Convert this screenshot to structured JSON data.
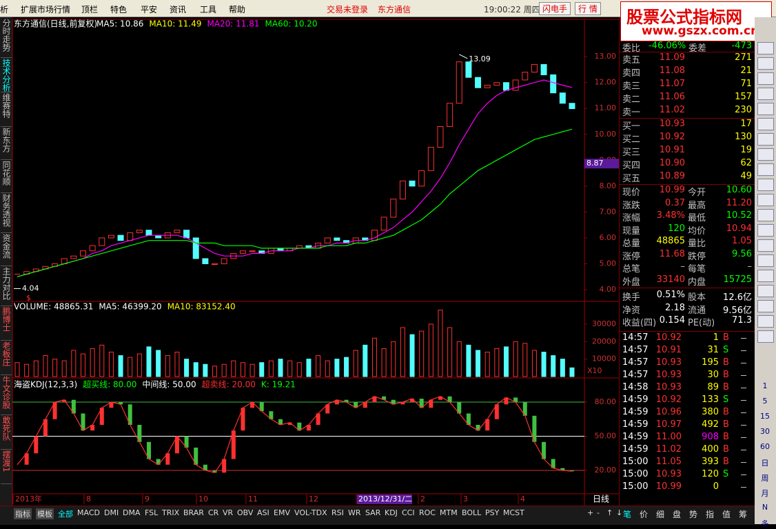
{
  "menu": {
    "items": [
      "析",
      "扩展市场行情",
      "顶栏",
      "特色",
      "平安",
      "资讯",
      "工具",
      "帮助"
    ],
    "status": [
      "交易未登录",
      "东方通信"
    ],
    "clock": "19:00:22 周四",
    "buttons": [
      "闪电手",
      "行 情"
    ]
  },
  "logo": {
    "title": "股票公式指标网",
    "url": "www.gszx.com.cn"
  },
  "left_tabs": [
    "分时走势",
    "技术分析",
    "维赛特",
    "新东方",
    "同花顺",
    "财务透视",
    "资金流",
    "主力对比",
    "鹏博士",
    "老板庄",
    "牛文诊股",
    "敢死队",
    "摆渡1"
  ],
  "price_chart": {
    "title": "东方通信(日线,前复权)",
    "ma_labels": [
      {
        "text": "MA5: 10.86",
        "color": "#ffffff"
      },
      {
        "text": "MA10: 11.49",
        "color": "#ffff00"
      },
      {
        "text": "MA20: 11.81",
        "color": "#ff00ff"
      },
      {
        "text": "MA60: 10.20",
        "color": "#00ff00"
      }
    ],
    "ylim": [
      3.6,
      14.39
    ],
    "yticks": [
      {
        "value": 4,
        "label": "4.00"
      },
      {
        "value": 5,
        "label": "5.00"
      },
      {
        "value": 6,
        "label": "6.00"
      },
      {
        "value": 7,
        "label": "7.00"
      },
      {
        "value": 8,
        "label": "8.00"
      },
      {
        "value": 9,
        "label": "9.00"
      },
      {
        "value": 10,
        "label": "10.00"
      },
      {
        "value": 11,
        "label": "11.00"
      },
      {
        "value": 12,
        "label": "12.00"
      },
      {
        "value": 13,
        "label": "13.00"
      }
    ],
    "close": [
      4.6,
      4.7,
      4.8,
      4.9,
      5.0,
      5.2,
      5.3,
      5.5,
      5.7,
      6.0,
      6.1,
      5.9,
      6.2,
      6.3,
      6.1,
      6.0,
      6.2,
      6.3,
      6.0,
      5.2,
      5.0,
      5.0,
      5.2,
      5.4,
      5.5,
      5.5,
      5.4,
      5.6,
      5.5,
      5.6,
      5.7,
      5.6,
      5.8,
      6.0,
      5.9,
      5.8,
      6.0,
      5.9,
      6.3,
      6.8,
      7.5,
      8.2,
      8.0,
      8.6,
      9.5,
      10.3,
      11.2,
      12.8,
      12.2,
      11.8,
      11.9,
      12.0,
      11.7,
      12.1,
      12.4,
      12.7,
      12.3,
      11.6,
      11.2,
      10.99
    ],
    "ma20": [
      4.5,
      4.6,
      4.7,
      4.8,
      4.9,
      5.0,
      5.1,
      5.2,
      5.4,
      5.5,
      5.7,
      5.8,
      5.9,
      6.0,
      6.1,
      6.1,
      6.1,
      6.1,
      6.0,
      5.8,
      5.6,
      5.4,
      5.3,
      5.3,
      5.3,
      5.4,
      5.4,
      5.5,
      5.5,
      5.5,
      5.6,
      5.6,
      5.7,
      5.7,
      5.8,
      5.8,
      5.9,
      5.9,
      6.0,
      6.2,
      6.4,
      6.7,
      7.0,
      7.4,
      7.8,
      8.3,
      8.9,
      9.6,
      10.2,
      10.8,
      11.2,
      11.5,
      11.7,
      11.8,
      11.9,
      12.0,
      12.1,
      12.0,
      11.9,
      11.81
    ],
    "ma60": [
      4.5,
      4.6,
      4.7,
      4.8,
      4.9,
      5.0,
      5.1,
      5.2,
      5.3,
      5.4,
      5.5,
      5.6,
      5.7,
      5.8,
      5.9,
      5.9,
      5.9,
      5.9,
      5.9,
      5.8,
      5.8,
      5.8,
      5.7,
      5.7,
      5.7,
      5.7,
      5.6,
      5.6,
      5.6,
      5.6,
      5.6,
      5.6,
      5.6,
      5.7,
      5.7,
      5.7,
      5.8,
      5.8,
      5.9,
      6.0,
      6.1,
      6.3,
      6.5,
      6.7,
      7.0,
      7.3,
      7.7,
      8.0,
      8.3,
      8.6,
      8.8,
      9.0,
      9.2,
      9.4,
      9.6,
      9.8,
      9.9,
      10.0,
      10.1,
      10.2
    ],
    "high": {
      "value": 13.09,
      "label": "13.09"
    },
    "low": {
      "value": 4.04,
      "label": "4.04"
    },
    "cursor": {
      "value": 8.87,
      "label": "8.87"
    },
    "marker": "$"
  },
  "volume_chart": {
    "labels": [
      {
        "text": "VOLUME: 48865.31",
        "color": "#ffffff"
      },
      {
        "text": "MA5: 46399.20",
        "color": "#ffffff"
      },
      {
        "text": "MA10: 83152.40",
        "color": "#ffff00"
      }
    ],
    "ylim": [
      0,
      41800
    ],
    "yticks": [
      10000,
      20000,
      30000
    ],
    "unit": "X10",
    "values": [
      8000,
      7000,
      9000,
      12000,
      10000,
      9000,
      15000,
      13000,
      16000,
      18000,
      14000,
      12000,
      11000,
      13000,
      17000,
      15000,
      12000,
      14000,
      10000,
      8000,
      7000,
      6000,
      7000,
      9000,
      8000,
      7000,
      8000,
      9000,
      10000,
      9000,
      8000,
      10000,
      12000,
      9000,
      10000,
      11000,
      15000,
      18000,
      22000,
      16000,
      20000,
      28000,
      24000,
      26000,
      30000,
      38000,
      28000,
      20000,
      18000,
      15000,
      14000,
      16000,
      17000,
      20000,
      19000,
      15000,
      14000,
      12000,
      10000,
      5000
    ]
  },
  "kdj_chart": {
    "labels": [
      {
        "text": "海盗KDJ(12,3,3)",
        "color": "#ffffff"
      },
      {
        "text": "超买线: 80.00",
        "color": "#00ff00"
      },
      {
        "text": "中间线: 50.00",
        "color": "#ffffff"
      },
      {
        "text": "超卖线: 20.00",
        "color": "#ff3030"
      },
      {
        "text": "K: 19.21",
        "color": "#00ff00"
      }
    ],
    "ylim": [
      0,
      100
    ],
    "yticks": [
      {
        "value": 20,
        "label": "20.00"
      },
      {
        "value": 50,
        "label": "50.00"
      },
      {
        "value": 80,
        "label": "80.00"
      }
    ],
    "k": [
      25,
      35,
      50,
      65,
      80,
      82,
      70,
      55,
      60,
      75,
      80,
      78,
      60,
      45,
      30,
      25,
      35,
      50,
      40,
      25,
      20,
      18,
      30,
      55,
      75,
      80,
      72,
      65,
      60,
      62,
      55,
      60,
      70,
      78,
      82,
      80,
      75,
      80,
      85,
      82,
      78,
      80,
      83,
      75,
      82,
      85,
      80,
      70,
      60,
      55,
      65,
      78,
      84,
      80,
      68,
      45,
      30,
      22,
      20,
      19.21
    ]
  },
  "date_axis": {
    "labels": [
      "2013年",
      "8",
      "9",
      "10",
      "11",
      "12",
      "2013/12/31/二",
      "2",
      "3",
      "4"
    ],
    "period": "日线"
  },
  "bottom_tabs": [
    "指标",
    "模板",
    "全部",
    "MACD",
    "DMI",
    "DMA",
    "FSL",
    "TRIX",
    "BRAR",
    "CR",
    "VR",
    "OBV",
    "ASI",
    "EMV",
    "VOL-TDX",
    "RSI",
    "WR",
    "SAR",
    "KDJ",
    "CCI",
    "ROC",
    "MTM",
    "BOLL",
    "PSY",
    "MCST"
  ],
  "zoom_buttons": [
    "+",
    "-",
    "↑",
    "↓"
  ],
  "quote": {
    "ratio": [
      "委比",
      "-46.06%",
      "委差",
      "-473"
    ],
    "sell": [
      [
        "卖五",
        "11.09",
        "271"
      ],
      [
        "卖四",
        "11.08",
        "21"
      ],
      [
        "卖三",
        "11.07",
        "71"
      ],
      [
        "卖二",
        "11.06",
        "157"
      ],
      [
        "卖一",
        "11.02",
        "230"
      ]
    ],
    "buy": [
      [
        "买一",
        "10.93",
        "17"
      ],
      [
        "买二",
        "10.92",
        "130"
      ],
      [
        "买三",
        "10.91",
        "19"
      ],
      [
        "买四",
        "10.90",
        "62"
      ],
      [
        "买五",
        "10.89",
        "49"
      ]
    ],
    "stats": [
      [
        "现价",
        "10.99",
        "今开",
        "10.60"
      ],
      [
        "涨跌",
        "0.37",
        "最高",
        "11.20"
      ],
      [
        "涨幅",
        "3.48%",
        "最低",
        "10.52"
      ],
      [
        "现量",
        "120",
        "均价",
        "10.94"
      ],
      [
        "总量",
        "48865",
        "量比",
        "1.05"
      ],
      [
        "涨停",
        "11.68",
        "跌停",
        "9.56"
      ],
      [
        "总笔",
        "–",
        "每笔",
        "–"
      ],
      [
        "外盘",
        "33140",
        "内盘",
        "15725"
      ],
      [
        "换手",
        "0.51%",
        "股本",
        "12.6亿"
      ],
      [
        "净资",
        "2.18",
        "流通",
        "9.56亿"
      ],
      [
        "收益(四)",
        "0.154",
        "PE(动)",
        "71.3"
      ]
    ],
    "ticks": [
      [
        "14:57",
        "10.92",
        "1",
        "B"
      ],
      [
        "14:57",
        "10.91",
        "31",
        "S"
      ],
      [
        "14:57",
        "10.93",
        "195",
        "B"
      ],
      [
        "14:57",
        "10.93",
        "30",
        "B"
      ],
      [
        "14:58",
        "10.93",
        "89",
        "B"
      ],
      [
        "14:59",
        "10.92",
        "133",
        "S"
      ],
      [
        "14:59",
        "10.96",
        "380",
        "B"
      ],
      [
        "14:59",
        "10.97",
        "492",
        "B"
      ],
      [
        "14:59",
        "11.00",
        "908",
        "B"
      ],
      [
        "14:59",
        "11.02",
        "400",
        "B"
      ],
      [
        "15:00",
        "11.05",
        "393",
        "B"
      ],
      [
        "15:00",
        "10.93",
        "120",
        "S"
      ],
      [
        "15:00",
        "10.99",
        "0",
        null
      ]
    ],
    "tabs": [
      "笔",
      "价",
      "细",
      "盘",
      "势",
      "指",
      "值",
      "筹"
    ]
  },
  "toolbar": [
    "1",
    "5",
    "15",
    "30",
    "60",
    "日",
    "周",
    "月",
    "N",
    "多"
  ]
}
